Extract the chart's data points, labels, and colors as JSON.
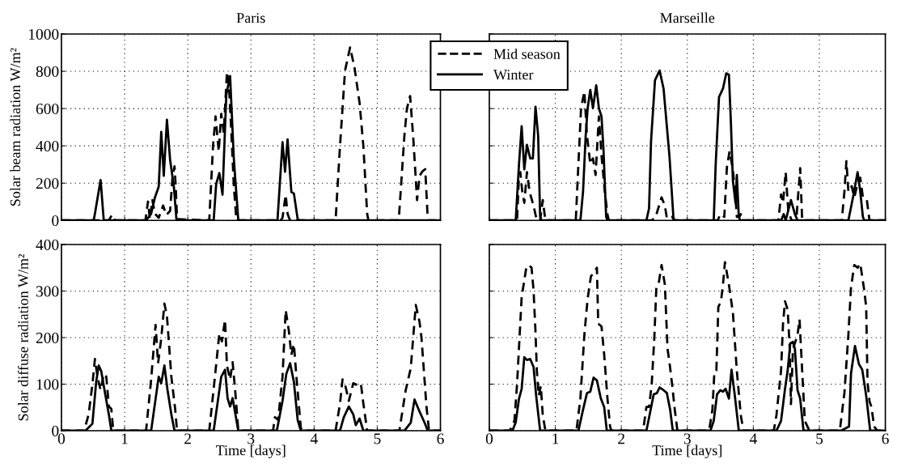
{
  "chart_data": [
    {
      "type": "line",
      "title": "Paris",
      "ylabel": "Solar beam radiation W/m²",
      "xlim": [
        0,
        6
      ],
      "ylim": [
        0,
        1000
      ],
      "xticks": [
        0,
        1,
        2,
        3,
        4,
        5,
        6
      ],
      "yticks": [
        0,
        200,
        400,
        600,
        800,
        1000
      ],
      "tick_labels": "y",
      "grid": true,
      "legend": "top right",
      "marker": "none",
      "series": [
        {
          "name": "Mid season",
          "color": "#000000",
          "line_style": "dashed",
          "x": [
            0,
            0.75,
            0.8,
            0.85,
            1.33,
            1.37,
            1.4,
            1.44,
            1.48,
            1.54,
            1.61,
            1.66,
            1.72,
            1.76,
            1.79,
            1.81,
            1.83,
            2.34,
            2.4,
            2.44,
            2.49,
            2.53,
            2.57,
            2.62,
            2.65,
            2.69,
            2.73,
            2.77,
            3.47,
            3.5,
            3.55,
            3.58,
            3.61,
            3.63,
            4.34,
            4.41,
            4.49,
            4.57,
            4.64,
            4.72,
            4.78,
            4.84,
            4.86,
            5.34,
            5.43,
            5.47,
            5.52,
            5.57,
            5.63,
            5.67,
            5.71,
            5.74,
            5.76,
            5.8,
            6
          ],
          "values": [
            0,
            0,
            30,
            0,
            0,
            101,
            7,
            109,
            36,
            14,
            80,
            29,
            51,
            239,
            290,
            181,
            7,
            0,
            399,
            558,
            370,
            572,
            471,
            797,
            739,
            471,
            181,
            0,
            0,
            14,
            138,
            36,
            7,
            0,
            0,
            399,
            804,
            928,
            819,
            630,
            399,
            36,
            0,
            0,
            457,
            601,
            667,
            442,
            109,
            239,
            261,
            270,
            275,
            0,
            0
          ]
        },
        {
          "name": "Winter",
          "color": "#000000",
          "line_style": "solid",
          "x": [
            0,
            0.51,
            0.53,
            0.62,
            0.67,
            1.34,
            1.42,
            1.48,
            1.54,
            1.58,
            1.62,
            1.67,
            1.72,
            1.78,
            1.82,
            1.84,
            2.41,
            2.45,
            2.5,
            2.55,
            2.61,
            2.67,
            2.73,
            2.8,
            3.42,
            3.5,
            3.54,
            3.58,
            3.64,
            3.68,
            3.74,
            3.77,
            6
          ],
          "values": [
            0,
            0,
            36,
            217,
            0,
            0,
            36,
            123,
            181,
            475,
            239,
            540,
            326,
            181,
            7,
            0,
            0,
            196,
            254,
            138,
            674,
            775,
            326,
            0,
            0,
            420,
            261,
            435,
            152,
            145,
            7,
            0,
            0
          ]
        }
      ]
    },
    {
      "type": "line",
      "title": "Marseille",
      "xlim": [
        0,
        6
      ],
      "ylim": [
        0,
        1000
      ],
      "xticks": [
        0,
        1,
        2,
        3,
        4,
        5,
        6
      ],
      "yticks": [
        0,
        200,
        400,
        600,
        800,
        1000
      ],
      "tick_labels": false,
      "grid": true,
      "marker": "none",
      "series": [
        {
          "color": "#000000",
          "line_style": "dashed",
          "x": [
            0,
            0.42,
            0.45,
            0.47,
            0.5,
            0.53,
            0.57,
            0.61,
            0.67,
            0.72,
            0.77,
            0.81,
            0.85,
            1.31,
            1.35,
            1.39,
            1.44,
            1.48,
            1.53,
            1.57,
            1.61,
            1.66,
            1.7,
            1.75,
            1.79,
            1.81,
            2.46,
            2.52,
            2.61,
            2.66,
            2.69,
            2.77,
            2.8,
            3.46,
            3.5,
            3.56,
            3.6,
            3.64,
            3.69,
            3.73,
            3.75,
            3.79,
            3.81,
            3.83,
            4.38,
            4.42,
            4.45,
            4.49,
            4.53,
            4.58,
            4.65,
            4.71,
            4.74,
            5.34,
            5.38,
            5.41,
            5.44,
            5.49,
            5.53,
            5.58,
            5.62,
            5.66,
            5.72,
            5.76,
            6
          ],
          "values": [
            0,
            0,
            244,
            259,
            154,
            94,
            259,
            154,
            79,
            0,
            0,
            109,
            0,
            0,
            303,
            602,
            692,
            453,
            303,
            333,
            244,
            557,
            348,
            154,
            34,
            0,
            0,
            19,
            124,
            79,
            12,
            19,
            0,
            0,
            34,
            19,
            288,
            371,
            274,
            124,
            19,
            19,
            34,
            0,
            0,
            139,
            94,
            259,
            49,
            0,
            0,
            281,
            0,
            0,
            154,
            318,
            154,
            184,
            124,
            199,
            229,
            124,
            109,
            0,
            0
          ]
        },
        {
          "color": "#000000",
          "line_style": "solid",
          "x": [
            0,
            0.4,
            0.45,
            0.49,
            0.53,
            0.57,
            0.62,
            0.66,
            0.7,
            0.74,
            0.77,
            0.79,
            1.38,
            1.42,
            1.46,
            1.49,
            1.53,
            1.57,
            1.62,
            1.66,
            1.7,
            1.73,
            1.77,
            1.79,
            2.38,
            2.42,
            2.45,
            2.51,
            2.58,
            2.64,
            2.73,
            2.79,
            2.81,
            3.4,
            3.43,
            3.48,
            3.54,
            3.59,
            3.63,
            3.66,
            3.69,
            3.73,
            3.75,
            3.78,
            3.8,
            4.42,
            4.46,
            4.49,
            4.57,
            4.63,
            4.67,
            5.44,
            5.51,
            5.58,
            5.62,
            5.66,
            5.68,
            6
          ],
          "values": [
            0,
            0,
            303,
            505,
            274,
            405,
            333,
            333,
            610,
            453,
            19,
            0,
            0,
            154,
            453,
            602,
            700,
            602,
            725,
            602,
            557,
            378,
            19,
            0,
            0,
            64,
            423,
            752,
            804,
            707,
            341,
            12,
            0,
            0,
            303,
            662,
            707,
            789,
            782,
            528,
            214,
            94,
            244,
            19,
            0,
            0,
            34,
            0,
            109,
            34,
            0,
            0,
            124,
            259,
            154,
            19,
            0,
            0
          ]
        }
      ]
    },
    {
      "type": "line",
      "xlabel": "Time [days]",
      "ylabel": "Solar diffuse radiation W/m²",
      "xlim": [
        0,
        6
      ],
      "ylim": [
        0,
        400
      ],
      "xticks": [
        0,
        1,
        2,
        3,
        4,
        5,
        6
      ],
      "yticks": [
        0,
        100,
        200,
        300,
        400
      ],
      "grid": true,
      "marker": "none",
      "series": [
        {
          "color": "#000000",
          "line_style": "dashed",
          "x": [
            0,
            0.36,
            0.43,
            0.49,
            0.53,
            0.57,
            0.62,
            0.67,
            0.71,
            0.75,
            0.79,
            0.82,
            1.34,
            1.42,
            1.49,
            1.53,
            1.58,
            1.63,
            1.67,
            1.74,
            1.8,
            1.83,
            2.34,
            2.43,
            2.5,
            2.54,
            2.59,
            2.62,
            2.67,
            2.71,
            2.75,
            2.8,
            3.35,
            3.38,
            3.43,
            3.5,
            3.55,
            3.6,
            3.64,
            3.68,
            3.72,
            3.79,
            3.81,
            4.34,
            4.41,
            4.45,
            4.49,
            4.55,
            4.62,
            4.66,
            4.74,
            4.78,
            4.84,
            5.35,
            5.45,
            5.53,
            5.61,
            5.67,
            5.7,
            5.78,
            5.82,
            6
          ],
          "values": [
            0,
            0,
            35,
            99,
            154,
            116,
            87,
            122,
            116,
            52,
            47,
            0,
            0,
            110,
            227,
            145,
            198,
            273,
            247,
            116,
            47,
            0,
            0,
            116,
            209,
            192,
            238,
            140,
            110,
            147,
            87,
            0,
            0,
            29,
            23,
            116,
            259,
            215,
            163,
            186,
            116,
            6,
            0,
            0,
            58,
            110,
            99,
            64,
            102,
            99,
            102,
            58,
            0,
            0,
            87,
            134,
            270,
            233,
            200,
            50,
            0,
            0
          ]
        },
        {
          "color": "#000000",
          "line_style": "solid",
          "x": [
            0,
            0.38,
            0.49,
            0.55,
            0.59,
            0.63,
            0.69,
            0.75,
            0.79,
            1.42,
            1.48,
            1.54,
            1.58,
            1.63,
            1.68,
            1.74,
            1.79,
            2.41,
            2.47,
            2.53,
            2.59,
            2.63,
            2.67,
            2.71,
            2.77,
            2.8,
            3.41,
            3.5,
            3.56,
            3.62,
            3.68,
            3.74,
            3.79,
            4.41,
            4.47,
            4.55,
            4.62,
            4.66,
            4.72,
            4.78,
            5.43,
            5.53,
            5.59,
            5.67,
            5.75,
            5.8,
            6
          ],
          "values": [
            0,
            0,
            15,
            105,
            140,
            128,
            81,
            35,
            0,
            0,
            58,
            116,
            102,
            140,
            87,
            35,
            0,
            0,
            58,
            116,
            131,
            70,
            52,
            70,
            23,
            0,
            0,
            64,
            122,
            145,
            105,
            23,
            0,
            0,
            29,
            52,
            35,
            12,
            26,
            0,
            0,
            17,
            67,
            41,
            17,
            0,
            0
          ]
        }
      ]
    },
    {
      "type": "line",
      "xlabel": "Time [days]",
      "xlim": [
        0,
        6
      ],
      "ylim": [
        0,
        400
      ],
      "xticks": [
        0,
        1,
        2,
        3,
        4,
        5,
        6
      ],
      "yticks": [
        0,
        100,
        200,
        300,
        400
      ],
      "tick_labels": "x",
      "grid": true,
      "marker": "none",
      "series": [
        {
          "color": "#000000",
          "line_style": "dashed",
          "x": [
            0,
            0.31,
            0.38,
            0.42,
            0.46,
            0.49,
            0.53,
            0.56,
            0.6,
            0.64,
            0.67,
            0.7,
            0.72,
            0.75,
            0.78,
            0.81,
            0.85,
            1.32,
            1.38,
            1.44,
            1.49,
            1.54,
            1.58,
            1.63,
            1.65,
            1.7,
            1.74,
            1.79,
            1.83,
            1.85,
            2.33,
            2.38,
            2.42,
            2.46,
            2.5,
            2.53,
            2.57,
            2.61,
            2.66,
            2.7,
            2.73,
            2.77,
            2.81,
            2.85,
            3.33,
            3.38,
            3.41,
            3.44,
            3.47,
            3.51,
            3.54,
            3.57,
            3.63,
            3.69,
            3.75,
            3.81,
            3.85,
            4.31,
            4.35,
            4.42,
            4.45,
            4.48,
            4.52,
            4.55,
            4.57,
            4.6,
            4.63,
            4.67,
            4.7,
            4.74,
            4.78,
            4.85,
            5.31,
            5.38,
            5.44,
            5.48,
            5.53,
            5.58,
            5.62,
            5.68,
            5.71,
            5.73,
            5.76,
            5.79,
            5.83,
            5.88,
            6
          ],
          "values": [
            0,
            0,
            21,
            99,
            206,
            287,
            323,
            350,
            356,
            350,
            302,
            212,
            129,
            75,
            96,
            33,
            0,
            0,
            69,
            206,
            284,
            332,
            338,
            350,
            230,
            224,
            164,
            69,
            9,
            0,
            0,
            51,
            51,
            99,
            200,
            305,
            320,
            356,
            314,
            176,
            146,
            99,
            45,
            0,
            0,
            45,
            126,
            129,
            266,
            278,
            314,
            362,
            314,
            254,
            129,
            33,
            0,
            0,
            33,
            129,
            230,
            278,
            260,
            182,
            57,
            176,
            188,
            206,
            239,
            129,
            21,
            0,
            0,
            81,
            206,
            308,
            356,
            350,
            359,
            302,
            266,
            105,
            63,
            51,
            9,
            0,
            0
          ]
        },
        {
          "color": "#000000",
          "line_style": "solid",
          "x": [
            0,
            0.35,
            0.4,
            0.45,
            0.49,
            0.53,
            0.57,
            0.62,
            0.67,
            0.71,
            0.77,
            1.35,
            1.42,
            1.48,
            1.53,
            1.58,
            1.63,
            1.69,
            1.74,
            1.78,
            2.38,
            2.44,
            2.49,
            2.54,
            2.58,
            2.64,
            2.69,
            2.74,
            2.78,
            3.35,
            3.4,
            3.45,
            3.5,
            3.54,
            3.58,
            3.63,
            3.67,
            3.72,
            3.78,
            4.35,
            4.42,
            4.48,
            4.52,
            4.56,
            4.6,
            4.63,
            4.67,
            4.71,
            4.76,
            5.33,
            5.45,
            5.48,
            5.54,
            5.6,
            5.65,
            5.71,
            5.77,
            6
          ],
          "values": [
            0,
            0,
            18,
            69,
            90,
            158,
            152,
            154,
            137,
            75,
            0,
            0,
            45,
            81,
            84,
            114,
            108,
            69,
            51,
            0,
            0,
            42,
            78,
            81,
            93,
            87,
            81,
            45,
            0,
            0,
            21,
            78,
            87,
            84,
            90,
            69,
            131,
            75,
            0,
            0,
            21,
            90,
            129,
            188,
            191,
            176,
            87,
            69,
            0,
            0,
            9,
            123,
            182,
            143,
            131,
            75,
            0,
            0
          ]
        }
      ]
    }
  ]
}
